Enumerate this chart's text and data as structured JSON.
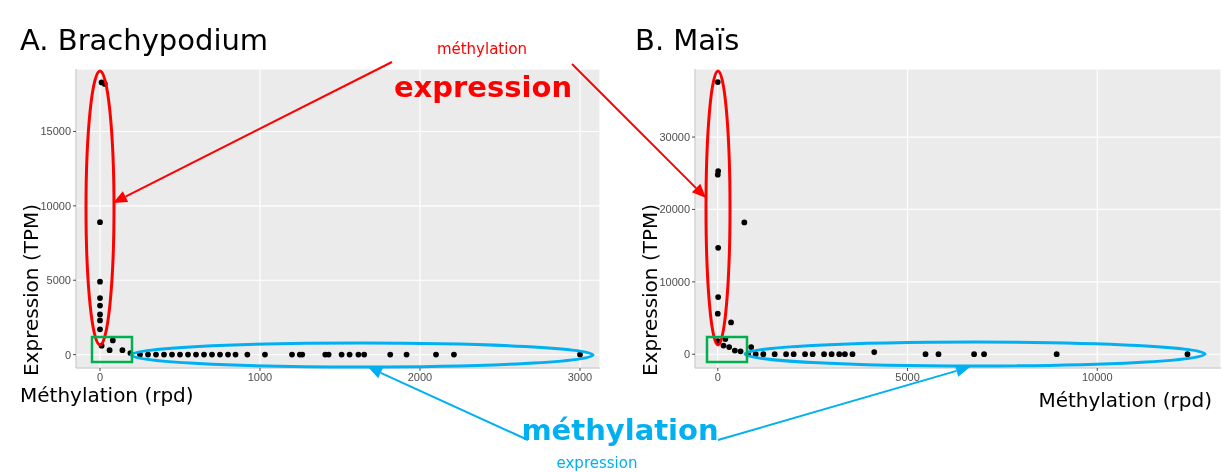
{
  "chart_data": [
    {
      "type": "scatter",
      "title": "A. Brachypodium",
      "xlabel": "Méthylation (rpd)",
      "ylabel": "Expression (TPM)",
      "color": "#000000",
      "marker": "circle",
      "grid": true,
      "xlim": [
        -150,
        3125
      ],
      "ylim": [
        -900,
        19200
      ],
      "xticks": [
        0,
        1000,
        2000,
        3000
      ],
      "yticks": [
        0,
        5000,
        10000,
        15000
      ],
      "annotations": [
        "méthylation",
        "expression"
      ],
      "x": [
        10,
        30,
        0,
        0,
        0,
        0,
        0,
        0,
        0,
        80,
        10,
        60,
        140,
        190,
        250,
        300,
        350,
        400,
        450,
        500,
        550,
        600,
        650,
        700,
        750,
        800,
        847,
        921,
        1031,
        1200,
        1249,
        1264,
        1408,
        1429,
        1510,
        1560,
        1615,
        1651,
        1814,
        1916,
        2100,
        2212,
        3000
      ],
      "values": [
        18300,
        18200,
        8900,
        4900,
        3800,
        3300,
        2700,
        2300,
        1700,
        950,
        600,
        300,
        300,
        100,
        0,
        0,
        0,
        0,
        0,
        0,
        0,
        0,
        0,
        0,
        0,
        0,
        0,
        0,
        0,
        0,
        0,
        0,
        0,
        0,
        0,
        0,
        0,
        0,
        0,
        0,
        0,
        0,
        0
      ]
    },
    {
      "type": "scatter",
      "title": "B. Maïs",
      "xlabel": "Méthylation (rpd)",
      "ylabel": "Expression (TPM)",
      "color": "#000000",
      "marker": "circle",
      "grid": true,
      "xlim": [
        -600,
        13260
      ],
      "ylim": [
        -1900,
        39400
      ],
      "xticks": [
        0,
        5000,
        10000
      ],
      "yticks": [
        0,
        10000,
        20000,
        30000
      ],
      "annotations": [
        "méthylation",
        "expression"
      ],
      "x": [
        0,
        10,
        0,
        10,
        10,
        0,
        350,
        700,
        200,
        880,
        0,
        150,
        300,
        450,
        600,
        800,
        1000,
        1200,
        1500,
        1800,
        2000,
        2300,
        2500,
        2800,
        3000,
        3200,
        3350,
        3550,
        4123,
        5474,
        5816,
        6754,
        7017,
        8930,
        12377
      ],
      "values": [
        37600,
        25300,
        24800,
        14700,
        7900,
        5600,
        4400,
        18200,
        2100,
        1000,
        1800,
        1200,
        1000,
        500,
        400,
        0,
        0,
        0,
        0,
        0,
        0,
        0,
        0,
        0,
        0,
        0,
        0,
        0,
        300,
        0,
        0,
        0,
        0,
        0,
        0
      ]
    }
  ]
}
